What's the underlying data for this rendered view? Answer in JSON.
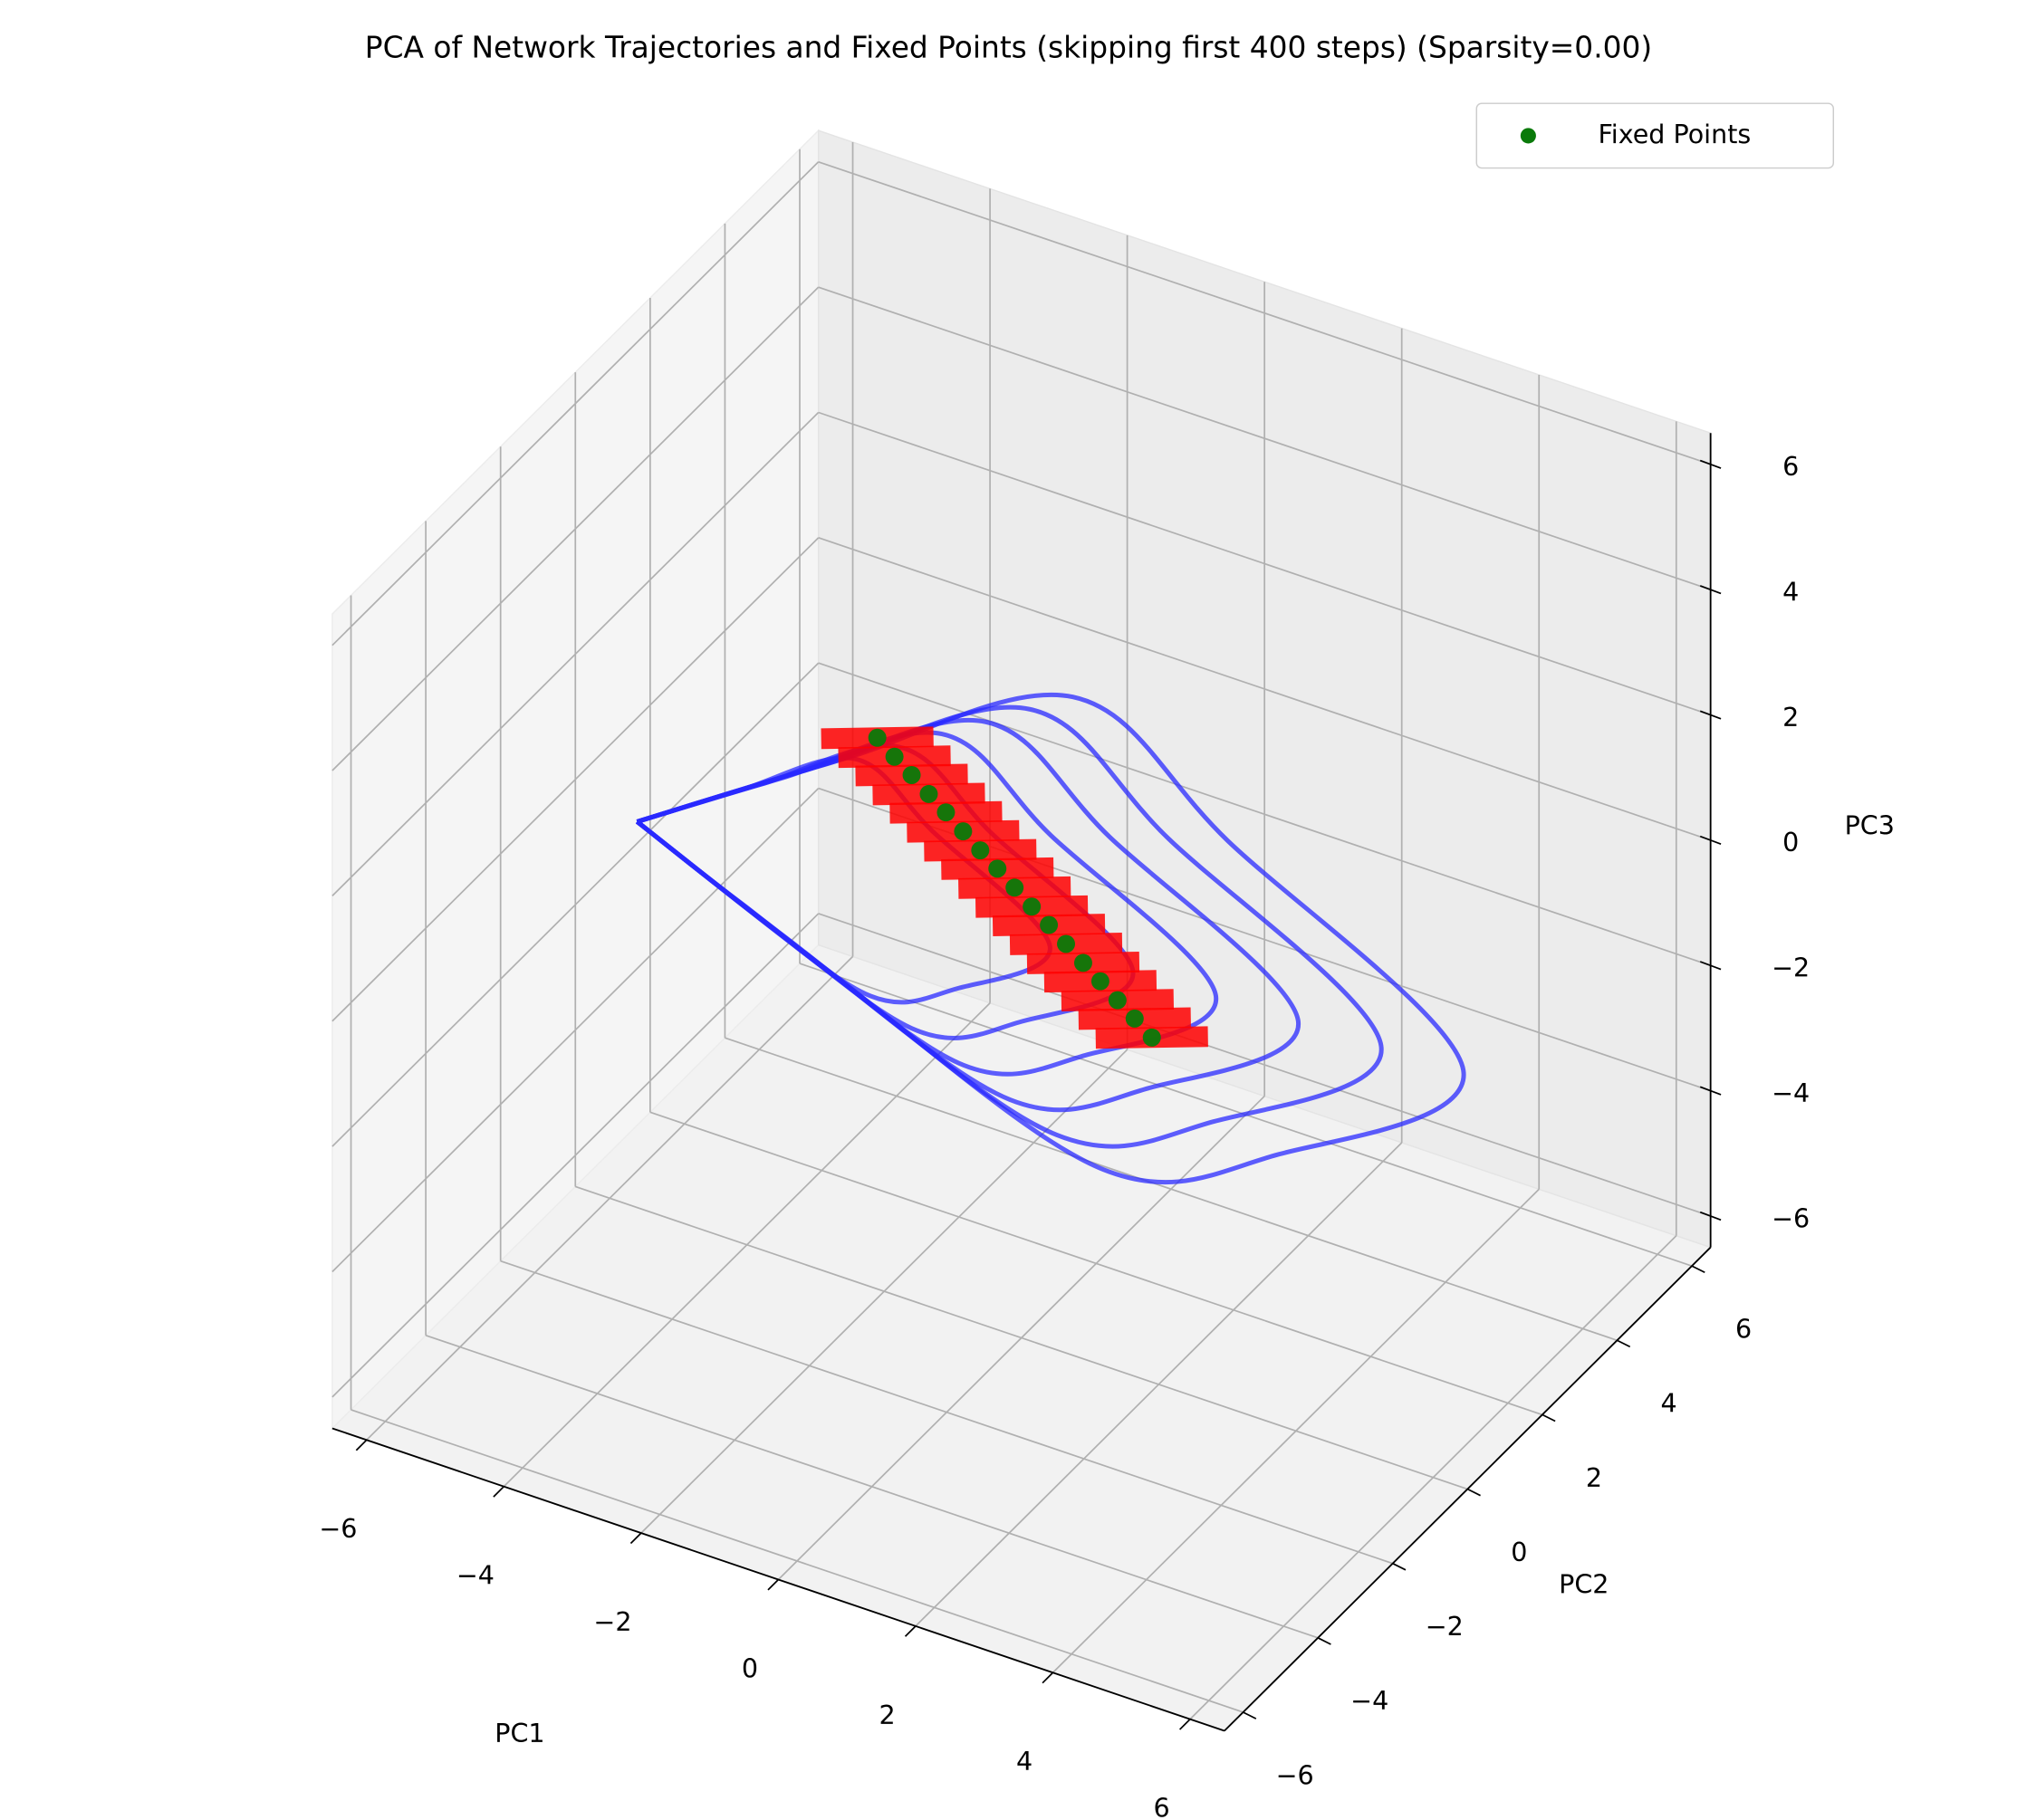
{
  "chart_data": {
    "type": "3d",
    "title": "PCA of Network Trajectories and Fixed Points (skipping first 400 steps) (Sparsity=0.00)",
    "xlabel": "PC1",
    "ylabel": "PC2",
    "zlabel": "PC3",
    "xlim": [
      -6.5,
      6.5
    ],
    "ylim": [
      -6.5,
      6.5
    ],
    "zlim": [
      -6.5,
      6.5
    ],
    "xticks": [
      {
        "value": -6,
        "label": "−6"
      },
      {
        "value": -4,
        "label": "−4"
      },
      {
        "value": -2,
        "label": "−2"
      },
      0,
      2,
      4,
      6
    ],
    "yticks": [
      {
        "value": -6,
        "label": "−6"
      },
      {
        "value": -4,
        "label": "−4"
      },
      {
        "value": -2,
        "label": "−2"
      },
      0,
      2,
      4,
      6
    ],
    "zticks": [
      {
        "value": -6,
        "label": "−6"
      },
      {
        "value": -4,
        "label": "−4"
      },
      {
        "value": -2,
        "label": "−2"
      },
      0,
      2,
      4,
      6
    ],
    "grid": true,
    "legend": "upper right",
    "series": [
      {
        "kind": "line",
        "color": "#2a2aff",
        "x": [
          -5.6,
          -2.59,
          0.75,
          3.01,
          5.35,
          3.18,
          1.2,
          -2.59,
          -5.6,
          null,
          -5.6,
          -2.89,
          0.12,
          2.15,
          4.26,
          2.3,
          0.52,
          -2.89,
          -5.6,
          null,
          -5.6,
          -3.19,
          -0.52,
          1.29,
          3.16,
          1.42,
          -0.16,
          -3.19,
          -5.6,
          null,
          -5.6,
          -3.49,
          -1.16,
          0.43,
          2.07,
          0.55,
          -0.84,
          -3.49,
          -5.6,
          null,
          -5.6,
          -3.79,
          -1.79,
          -0.43,
          0.97,
          -0.33,
          -1.52,
          -3.79,
          -5.6,
          null,
          -5.6,
          -4.1,
          -2.43,
          -1.3,
          -0.13,
          -1.21,
          -2.2,
          -4.1,
          -5.6
        ],
        "y": [
          0,
          0,
          0,
          0,
          2,
          1,
          0,
          0,
          0,
          null,
          0,
          0,
          0,
          0,
          1.8,
          0.9,
          0,
          0,
          0,
          null,
          0,
          0,
          0,
          0,
          1.6,
          0.8,
          0,
          0,
          0,
          null,
          0,
          0,
          0,
          0,
          1.4,
          0.7,
          0,
          0,
          0,
          null,
          0,
          0,
          0,
          0,
          1.2,
          0.6,
          0,
          0,
          0,
          null,
          0,
          0,
          0,
          0,
          1,
          0.5,
          0,
          0,
          0
        ],
        "z": [
          -0.34,
          1.78,
          4.01,
          2.55,
          -1.43,
          -2.99,
          -3.37,
          -1.8,
          -0.34,
          null,
          -0.34,
          1.57,
          3.58,
          2.26,
          -1.32,
          -2.73,
          -3.07,
          -1.65,
          -0.34,
          null,
          -0.34,
          1.36,
          3.14,
          1.97,
          -1.21,
          -2.46,
          -2.76,
          -1.51,
          -0.34,
          null,
          -0.34,
          1.14,
          2.71,
          1.68,
          -1.1,
          -2.2,
          -2.46,
          -1.36,
          -0.34,
          null,
          -0.34,
          0.93,
          2.27,
          1.39,
          -0.99,
          -1.93,
          -2.16,
          -1.22,
          -0.34,
          null,
          -0.34,
          0.72,
          1.84,
          1.11,
          -0.89,
          -1.67,
          -1.86,
          -1.07,
          -0.34
        ]
      },
      {
        "kind": "line",
        "color": "#ff0000",
        "x": [
          -2.7,
          -1.5,
          null,
          -2.45,
          -1.25,
          null,
          -2.2,
          -1.0,
          null,
          -1.95,
          -0.75,
          null,
          -1.7,
          -0.5,
          null,
          -1.45,
          -0.25,
          null,
          -1.2,
          0,
          null,
          -0.95,
          0.25,
          null,
          -0.7,
          0.5,
          null,
          -0.45,
          0.75,
          null,
          -0.2,
          1.0,
          null,
          0.05,
          1.25,
          null,
          0.3,
          1.5,
          null,
          0.55,
          1.75,
          null,
          0.8,
          2.0,
          null,
          1.05,
          2.25,
          null,
          1.3,
          2.5
        ],
        "y": [
          -0.4,
          0.4,
          null,
          -0.4,
          0.4,
          null,
          -0.4,
          0.4,
          null,
          -0.4,
          0.4,
          null,
          -0.4,
          0.4,
          null,
          -0.4,
          0.4,
          null,
          -0.4,
          0.4,
          null,
          -0.4,
          0.4,
          null,
          -0.4,
          0.4,
          null,
          -0.4,
          0.4,
          null,
          -0.4,
          0.4,
          null,
          -0.4,
          0.4,
          null,
          -0.4,
          0.4,
          null,
          -0.4,
          0.4,
          null,
          -0.4,
          0.4,
          null,
          -0.4,
          0.4,
          null,
          -0.4,
          0.4
        ],
        "z": [
          2.3,
          2.3,
          null,
          2.09,
          2.09,
          null,
          1.89,
          1.89,
          null,
          1.68,
          1.68,
          null,
          1.48,
          1.48,
          null,
          1.27,
          1.27,
          null,
          1.06,
          1.06,
          null,
          0.86,
          0.86,
          null,
          0.65,
          0.65,
          null,
          0.44,
          0.44,
          null,
          0.24,
          0.24,
          null,
          0.03,
          0.03,
          null,
          -0.18,
          -0.18,
          null,
          -0.38,
          -0.38,
          null,
          -0.59,
          -0.59,
          null,
          -0.79,
          -0.79,
          null,
          -1.0,
          -1.0
        ]
      },
      {
        "kind": "scatter",
        "name": "Fixed Points",
        "color": "#0a7a0a",
        "x": [
          -2.1,
          -1.85,
          -1.6,
          -1.35,
          -1.1,
          -0.85,
          -0.6,
          -0.35,
          -0.1,
          0.15,
          0.4,
          0.65,
          0.9,
          1.15,
          1.4,
          1.65,
          1.9
        ],
        "y": [
          0,
          0,
          0,
          0,
          0,
          0,
          0,
          0,
          0,
          0,
          0,
          0,
          0,
          0,
          0,
          0,
          0
        ],
        "z": [
          2.3,
          2.09,
          1.89,
          1.68,
          1.48,
          1.27,
          1.06,
          0.86,
          0.65,
          0.44,
          0.24,
          0.03,
          -0.18,
          -0.38,
          -0.59,
          -0.79,
          -1.0
        ]
      }
    ]
  }
}
